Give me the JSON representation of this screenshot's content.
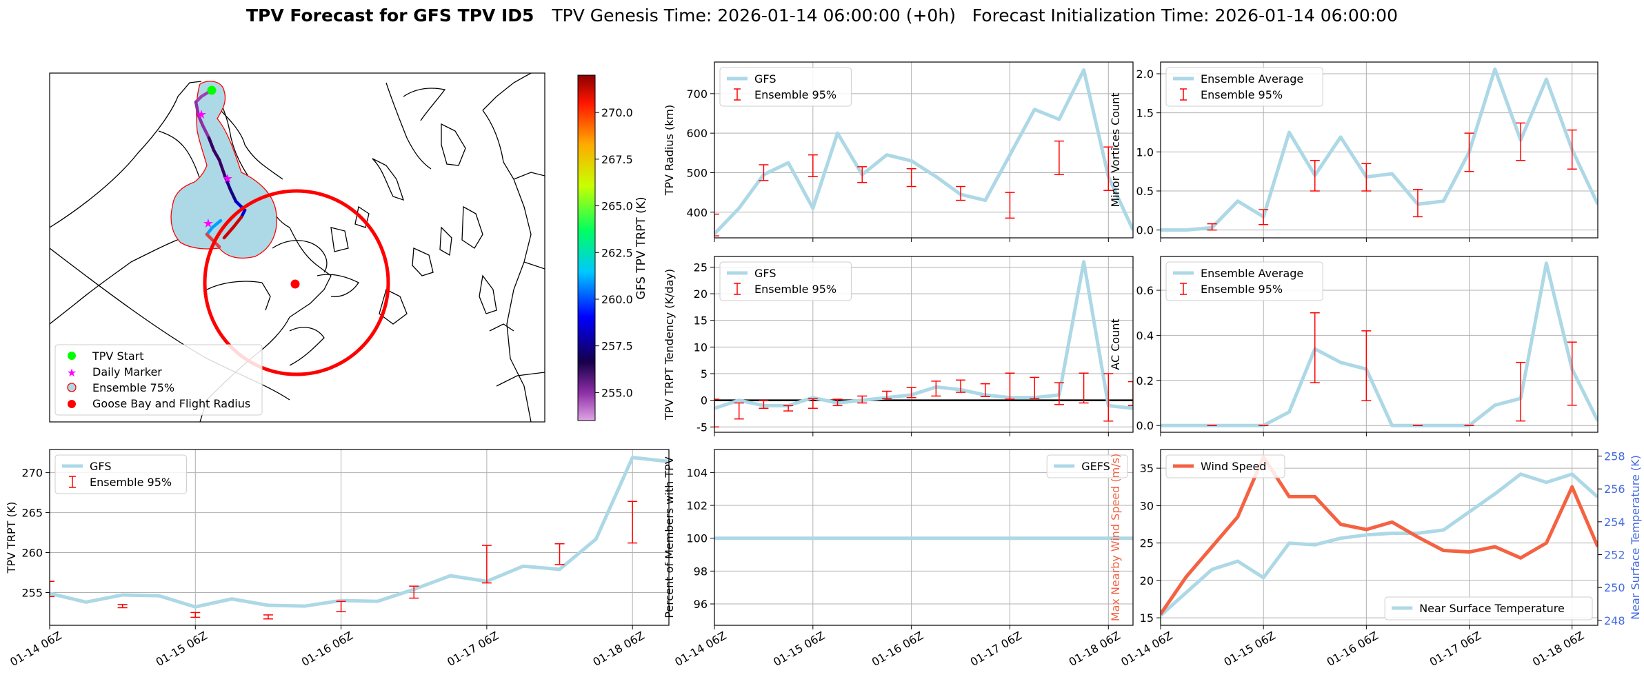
{
  "figure": {
    "title_bold": "TPV Forecast for GFS TPV ID5",
    "title_rest": "TPV Genesis Time: 2026-01-14 06:00:00 (+0h)   Forecast Initialization Time: 2026-01-14 06:00:00"
  },
  "colors": {
    "gfs_line": "#add8e6",
    "ensemble_bar": "#ff0000",
    "wind_line": "#f46242",
    "temp_axis": "#4169e1",
    "grid": "#b0b0b0",
    "zero_line": "#000000"
  },
  "x_ticks": [
    "01-14 06Z",
    "01-15 06Z",
    "01-16 06Z",
    "01-17 06Z",
    "01-18 06Z"
  ],
  "chart_data": [
    {
      "id": "map",
      "type": "map",
      "colorbar": {
        "label": "GFS TPV TRPT (K)",
        "range": [
          253.5,
          272.0
        ],
        "ticks": [
          255.0,
          257.5,
          260.0,
          262.5,
          265.0,
          267.5,
          270.0
        ]
      },
      "legend": {
        "placement": "lower-left",
        "entries": [
          {
            "label": "TPV Start",
            "marker": "circle",
            "color": "#00ff00"
          },
          {
            "label": "Daily Marker",
            "marker": "star",
            "color": "#ff00ff"
          },
          {
            "label": "Ensemble 75%",
            "marker": "circle-outline",
            "color": "#add8e6"
          },
          {
            "label": "Goose Bay and Flight Radius",
            "marker": "circle",
            "color": "#ff0000"
          }
        ]
      }
    },
    {
      "id": "radius",
      "type": "line",
      "ylabel": "TPV Radius (km)",
      "ylim": [
        335,
        780
      ],
      "yticks": [
        400,
        500,
        600,
        700
      ],
      "legend": {
        "placement": "top-left",
        "entries": [
          "GFS",
          "Ensemble 95%"
        ]
      },
      "line": [
        345,
        410,
        495,
        525,
        410,
        600,
        495,
        545,
        530,
        490,
        445,
        430,
        545,
        660,
        635,
        760,
        490,
        355
      ],
      "bars": [
        {
          "x": 0,
          "lo": 340,
          "hi": 395
        },
        {
          "x": 2,
          "lo": 480,
          "hi": 520
        },
        {
          "x": 4,
          "lo": 490,
          "hi": 545
        },
        {
          "x": 6,
          "lo": 475,
          "hi": 515
        },
        {
          "x": 8,
          "lo": 465,
          "hi": 510
        },
        {
          "x": 10,
          "lo": 430,
          "hi": 465
        },
        {
          "x": 12,
          "lo": 385,
          "hi": 450
        },
        {
          "x": 14,
          "lo": 495,
          "hi": 580
        },
        {
          "x": 16,
          "lo": 455,
          "hi": 565
        }
      ]
    },
    {
      "id": "minor",
      "type": "line",
      "ylabel": "Minor Vortices Count",
      "ylim": [
        -0.1,
        2.15
      ],
      "yticks": [
        "0.0",
        "0.5",
        "1.0",
        "1.5",
        "2.0"
      ],
      "legend": {
        "placement": "top-left",
        "entries": [
          "Ensemble Average",
          "Ensemble 95%"
        ]
      },
      "line": [
        0.0,
        0.0,
        0.03,
        0.37,
        0.17,
        1.25,
        0.7,
        1.19,
        0.68,
        0.72,
        0.33,
        0.37,
        1.0,
        2.06,
        1.15,
        1.93,
        1.03,
        0.33
      ],
      "bars": [
        {
          "x": 2,
          "lo": 0.0,
          "hi": 0.08
        },
        {
          "x": 4,
          "lo": 0.07,
          "hi": 0.26
        },
        {
          "x": 6,
          "lo": 0.5,
          "hi": 0.89
        },
        {
          "x": 8,
          "lo": 0.5,
          "hi": 0.85
        },
        {
          "x": 10,
          "lo": 0.17,
          "hi": 0.52
        },
        {
          "x": 12,
          "lo": 0.75,
          "hi": 1.24
        },
        {
          "x": 14,
          "lo": 0.89,
          "hi": 1.37
        },
        {
          "x": 16,
          "lo": 0.78,
          "hi": 1.28
        }
      ]
    },
    {
      "id": "tendency",
      "type": "line",
      "ylabel": "TPV TRPT Tendency (K/day)",
      "ylim": [
        -6,
        27
      ],
      "yticks": [
        -5,
        0,
        5,
        10,
        15,
        20,
        25
      ],
      "legend": {
        "placement": "top-left",
        "entries": [
          "GFS",
          "Ensemble 95%"
        ]
      },
      "line": [
        -1.5,
        0.0,
        -1.0,
        -1.0,
        0.5,
        -0.5,
        0.0,
        0.5,
        1.0,
        2.5,
        2.0,
        1.0,
        0.5,
        0.5,
        1.0,
        26.0,
        -1.0,
        -1.5
      ],
      "bars": [
        {
          "x": 0,
          "lo": -5,
          "hi": 0.2
        },
        {
          "x": 1,
          "lo": -3.5,
          "hi": -0.5
        },
        {
          "x": 2,
          "lo": -1.5,
          "hi": 0.0
        },
        {
          "x": 3,
          "lo": -2.0,
          "hi": -1.0
        },
        {
          "x": 4,
          "lo": -1.5,
          "hi": 0.3
        },
        {
          "x": 5,
          "lo": -1.0,
          "hi": 0.2
        },
        {
          "x": 6,
          "lo": -0.5,
          "hi": 0.8
        },
        {
          "x": 7,
          "lo": 0.3,
          "hi": 1.7
        },
        {
          "x": 8,
          "lo": 0.5,
          "hi": 2.4
        },
        {
          "x": 9,
          "lo": 0.8,
          "hi": 3.6
        },
        {
          "x": 10,
          "lo": 1.5,
          "hi": 3.8
        },
        {
          "x": 11,
          "lo": 0.7,
          "hi": 3.1
        },
        {
          "x": 12,
          "lo": 0.2,
          "hi": 5.1
        },
        {
          "x": 13,
          "lo": 0.3,
          "hi": 4.3
        },
        {
          "x": 14,
          "lo": -0.8,
          "hi": 3.3
        },
        {
          "x": 15,
          "lo": -0.5,
          "hi": 5.1
        },
        {
          "x": 16,
          "lo": -3.9,
          "hi": 5.0
        },
        {
          "x": 17,
          "lo": -1.0,
          "hi": 3.5
        }
      ],
      "zero_line": 0
    },
    {
      "id": "ac",
      "type": "line",
      "ylabel": "AC Count",
      "ylim": [
        -0.03,
        0.75
      ],
      "yticks": [
        "0.0",
        "0.2",
        "0.4",
        "0.6"
      ],
      "legend": {
        "placement": "top-left",
        "entries": [
          "Ensemble Average",
          "Ensemble 95%"
        ]
      },
      "line": [
        0.0,
        0.0,
        0.0,
        0.0,
        0.0,
        0.06,
        0.34,
        0.28,
        0.25,
        0.0,
        0.0,
        0.0,
        0.0,
        0.09,
        0.12,
        0.72,
        0.25,
        0.02
      ],
      "bars": [
        {
          "x": 2,
          "lo": 0.0,
          "hi": 0.0
        },
        {
          "x": 4,
          "lo": 0.0,
          "hi": 0.0
        },
        {
          "x": 6,
          "lo": 0.19,
          "hi": 0.5
        },
        {
          "x": 8,
          "lo": 0.11,
          "hi": 0.42
        },
        {
          "x": 10,
          "lo": 0.0,
          "hi": 0.0
        },
        {
          "x": 12,
          "lo": 0.0,
          "hi": 0.0
        },
        {
          "x": 14,
          "lo": 0.02,
          "hi": 0.28
        },
        {
          "x": 16,
          "lo": 0.09,
          "hi": 0.37
        }
      ]
    },
    {
      "id": "trpt",
      "type": "line",
      "ylabel": "TPV TRPT (K)",
      "ylim": [
        250.9,
        272.9
      ],
      "yticks": [
        255,
        260,
        265,
        270
      ],
      "legend": {
        "placement": "top-left",
        "entries": [
          "GFS",
          "Ensemble 95%"
        ]
      },
      "line": [
        254.9,
        253.8,
        254.7,
        254.6,
        253.2,
        254.2,
        253.4,
        253.3,
        254.0,
        253.9,
        255.4,
        257.1,
        256.4,
        258.3,
        257.9,
        261.7,
        271.9,
        271.4
      ],
      "bars": [
        {
          "x": 0,
          "lo": 254.5,
          "hi": 256.4
        },
        {
          "x": 2,
          "lo": 253.1,
          "hi": 253.5
        },
        {
          "x": 4,
          "lo": 251.9,
          "hi": 252.5
        },
        {
          "x": 6,
          "lo": 251.7,
          "hi": 252.2
        },
        {
          "x": 8,
          "lo": 252.6,
          "hi": 253.9
        },
        {
          "x": 10,
          "lo": 254.3,
          "hi": 255.8
        },
        {
          "x": 12,
          "lo": 256.2,
          "hi": 260.9
        },
        {
          "x": 14,
          "lo": 258.5,
          "hi": 261.1
        },
        {
          "x": 16,
          "lo": 261.2,
          "hi": 266.4
        }
      ]
    },
    {
      "id": "percent",
      "type": "line",
      "ylabel": "Percent of Members with TPV",
      "ylim": [
        94.7,
        105.4
      ],
      "yticks": [
        96,
        98,
        100,
        102,
        104
      ],
      "legend": {
        "placement": "top-right",
        "entries": [
          "GEFS"
        ]
      },
      "line": [
        100,
        100,
        100,
        100,
        100,
        100,
        100,
        100,
        100,
        100,
        100,
        100,
        100,
        100,
        100,
        100,
        100,
        100
      ]
    },
    {
      "id": "wind",
      "type": "line",
      "ylabel": "Max Nearby Wind Speed (m/s)",
      "ylabel_right": "Near Surface Temperature (K)",
      "ylim": [
        14,
        37.5
      ],
      "ylim_right": [
        247.7,
        258.4
      ],
      "yticks": [
        15,
        20,
        25,
        30,
        35
      ],
      "yticks_right": [
        248,
        250,
        252,
        254,
        256,
        258
      ],
      "legend": {
        "entries": [
          "Wind Speed"
        ],
        "placement": "top-left"
      },
      "legend_right": {
        "entries": [
          "Near Surface Temperature"
        ],
        "placement": "bottom-right"
      },
      "line": [
        15.5,
        20.5,
        24.5,
        28.5,
        36.5,
        31.2,
        31.2,
        27.5,
        26.8,
        27.8,
        25.8,
        24.0,
        23.8,
        24.5,
        23.0,
        25.0,
        32.5,
        24.5
      ],
      "line_right": [
        248.3,
        249.7,
        251.1,
        251.6,
        250.6,
        252.7,
        252.6,
        253.0,
        253.2,
        253.3,
        253.3,
        253.5,
        254.6,
        255.7,
        256.9,
        256.4,
        256.9,
        255.5
      ]
    }
  ]
}
